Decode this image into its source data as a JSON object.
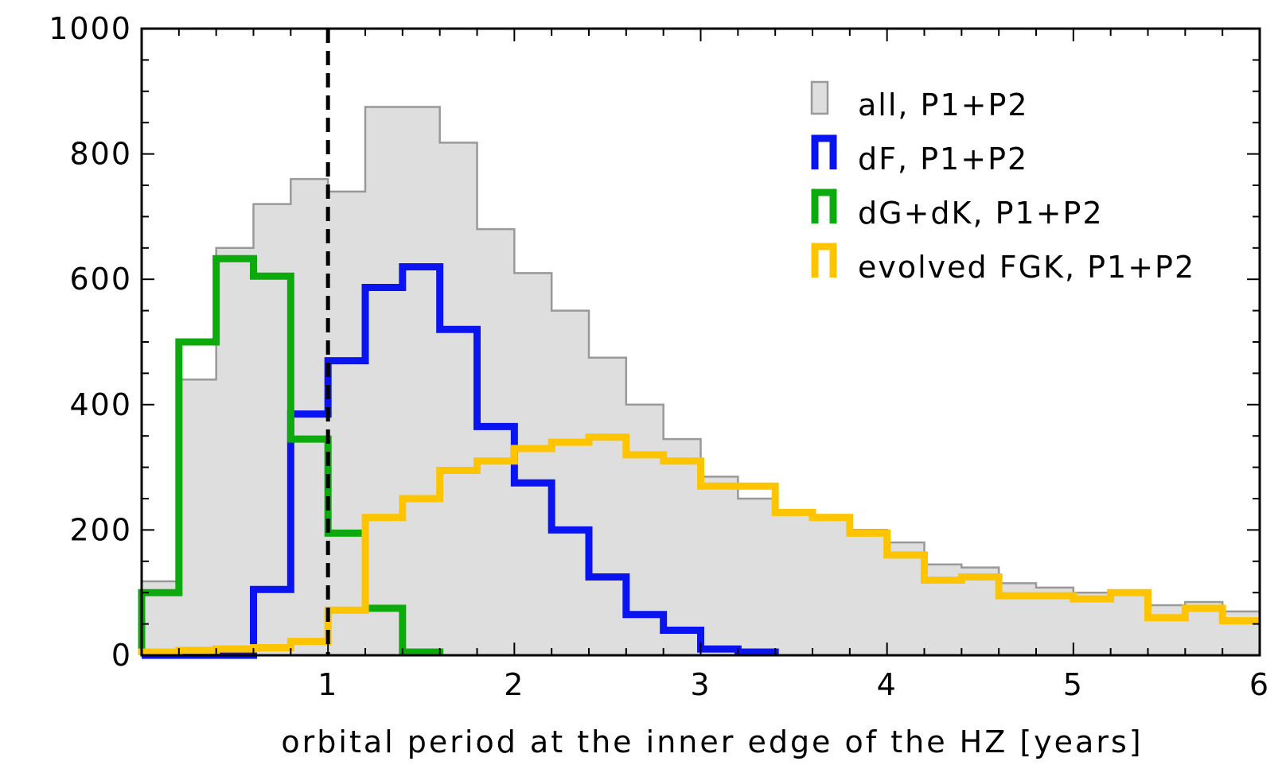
{
  "chart_data": {
    "type": "histogram",
    "xlabel": "orbital period at the inner edge of the HZ [years]",
    "ylabel": "",
    "title": "",
    "xlim": [
      0,
      6
    ],
    "ylim": [
      0,
      1000
    ],
    "bin_edges": [
      0,
      0.2,
      0.4,
      0.6,
      0.8,
      1.0,
      1.2,
      1.4,
      1.6,
      1.8,
      2.0,
      2.2,
      2.4,
      2.6,
      2.8,
      3.0,
      3.2,
      3.4,
      3.6,
      3.8,
      4.0,
      4.2,
      4.4,
      4.6,
      4.8,
      5.0,
      5.2,
      5.4,
      5.6,
      5.8,
      6.0
    ],
    "x_ticks": [
      {
        "value": 1,
        "label": "1"
      },
      {
        "value": 2,
        "label": "2"
      },
      {
        "value": 3,
        "label": "3"
      },
      {
        "value": 4,
        "label": "4"
      },
      {
        "value": 5,
        "label": "5"
      },
      {
        "value": 6,
        "label": "6"
      }
    ],
    "y_ticks": [
      {
        "value": 0,
        "label": "0"
      },
      {
        "value": 200,
        "label": "200"
      },
      {
        "value": 400,
        "label": "400"
      },
      {
        "value": 600,
        "label": "600"
      },
      {
        "value": 800,
        "label": "800"
      },
      {
        "value": 1000,
        "label": "1000"
      }
    ],
    "reference_line": {
      "x": 1,
      "style": "dashed",
      "color": "#000000"
    },
    "legend_position": "top-right",
    "series": [
      {
        "name": "all, P1+P2",
        "style": "filled",
        "color": "#999999",
        "fill": "#dedede",
        "values": [
          118,
          440,
          650,
          720,
          760,
          740,
          875,
          875,
          818,
          680,
          610,
          550,
          475,
          400,
          345,
          285,
          250,
          230,
          220,
          200,
          180,
          145,
          140,
          115,
          108,
          100,
          100,
          80,
          85,
          70
        ]
      },
      {
        "name": "dF, P1+P2",
        "style": "step",
        "color": "#0a14f0",
        "values": [
          0,
          0,
          0,
          105,
          385,
          470,
          587,
          620,
          520,
          365,
          275,
          200,
          125,
          65,
          40,
          10,
          5,
          0,
          0,
          0,
          0,
          0,
          0,
          0,
          0,
          0,
          0,
          0,
          0,
          0
        ]
      },
      {
        "name": "dG+dK, P1+P2",
        "style": "step",
        "color": "#0caa0c",
        "values": [
          100,
          500,
          633,
          605,
          345,
          195,
          75,
          5,
          0,
          0,
          0,
          0,
          0,
          0,
          0,
          0,
          0,
          0,
          0,
          0,
          0,
          0,
          0,
          0,
          0,
          0,
          0,
          0,
          0,
          0
        ]
      },
      {
        "name": "evolved FGK, P1+P2",
        "style": "step",
        "color": "#ffc400",
        "values": [
          5,
          8,
          10,
          12,
          22,
          72,
          220,
          250,
          295,
          310,
          330,
          340,
          348,
          320,
          310,
          270,
          270,
          228,
          220,
          195,
          160,
          120,
          125,
          95,
          95,
          90,
          100,
          60,
          75,
          55
        ]
      }
    ]
  }
}
